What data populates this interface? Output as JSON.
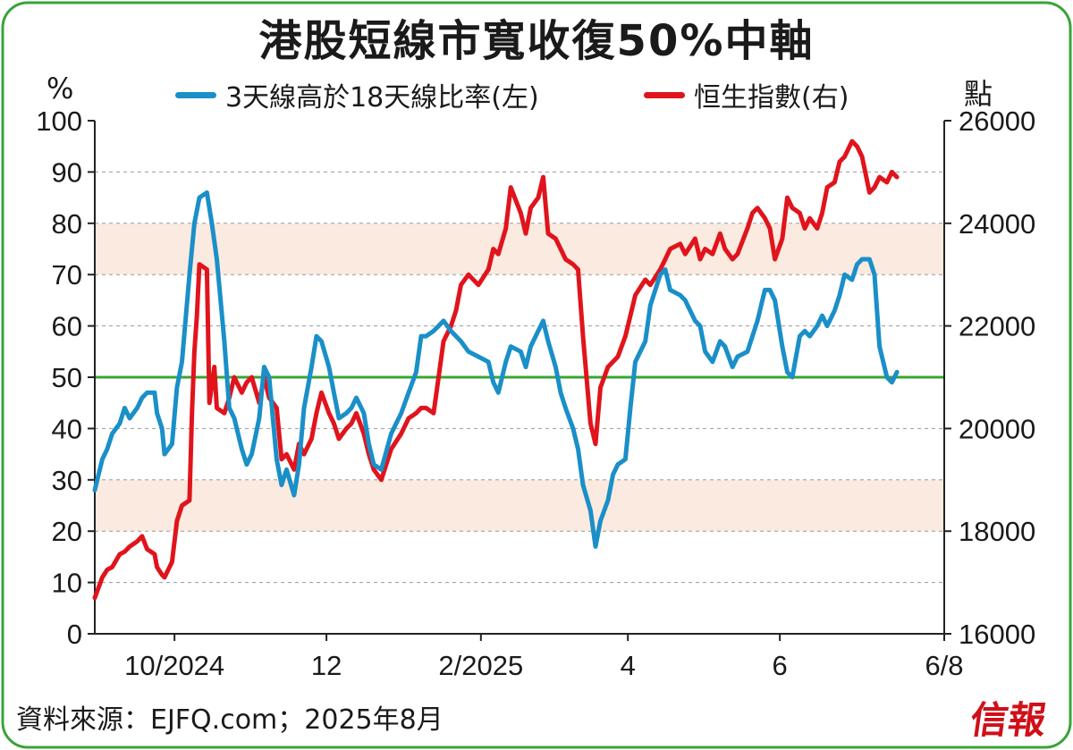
{
  "title": "港股短線市寬收復50%中軸",
  "units": {
    "left": "%",
    "right": "點"
  },
  "source": "資料來源：EJFQ.com；2025年8月",
  "brand": "信報",
  "colors": {
    "ratio": "#1a8fc8",
    "hsi": "#e0141c",
    "midline": "#3aa52f",
    "band": "#fbeadf",
    "frame": "#3aa33a"
  },
  "chart_data": {
    "type": "line",
    "x_ticks": [
      "10/2024",
      "12",
      "2/2025",
      "4",
      "6",
      "6/8"
    ],
    "y_left": {
      "range": [
        0,
        100
      ],
      "ticks": [
        "0",
        "10",
        "20",
        "30",
        "40",
        "50",
        "60",
        "70",
        "80",
        "90",
        "100"
      ]
    },
    "y_right": {
      "range": [
        16000,
        26000
      ],
      "ticks": [
        "16000",
        "18000",
        "20000",
        "22000",
        "24000",
        "26000"
      ]
    },
    "grid": "horizontal-dashed",
    "bands_left": [
      [
        20,
        30
      ],
      [
        70,
        80
      ]
    ],
    "reference_line_left": 50,
    "legend_position": "top",
    "series": [
      {
        "name": "3天線高於18天線比率(左)",
        "axis": "left",
        "points": [
          [
            "2024-08-30",
            28
          ],
          [
            "2024-09-02",
            34
          ],
          [
            "2024-09-04",
            36
          ],
          [
            "2024-09-06",
            39
          ],
          [
            "2024-09-09",
            41
          ],
          [
            "2024-09-11",
            44
          ],
          [
            "2024-09-13",
            42
          ],
          [
            "2024-09-16",
            44
          ],
          [
            "2024-09-18",
            46
          ],
          [
            "2024-09-20",
            47
          ],
          [
            "2024-09-23",
            47
          ],
          [
            "2024-09-24",
            43
          ],
          [
            "2024-09-26",
            40
          ],
          [
            "2024-09-27",
            35
          ],
          [
            "2024-09-30",
            37
          ],
          [
            "2024-10-02",
            48
          ],
          [
            "2024-10-04",
            53
          ],
          [
            "2024-10-07",
            70
          ],
          [
            "2024-10-09",
            80
          ],
          [
            "2024-10-11",
            85
          ],
          [
            "2024-10-14",
            86
          ],
          [
            "2024-10-16",
            80
          ],
          [
            "2024-10-18",
            73
          ],
          [
            "2024-10-21",
            57
          ],
          [
            "2024-10-23",
            44
          ],
          [
            "2024-10-25",
            42
          ],
          [
            "2024-10-28",
            36
          ],
          [
            "2024-10-30",
            33
          ],
          [
            "2024-11-01",
            35
          ],
          [
            "2024-11-04",
            42
          ],
          [
            "2024-11-06",
            52
          ],
          [
            "2024-11-08",
            50
          ],
          [
            "2024-11-11",
            34
          ],
          [
            "2024-11-13",
            29
          ],
          [
            "2024-11-15",
            32
          ],
          [
            "2024-11-18",
            27
          ],
          [
            "2024-11-20",
            33
          ],
          [
            "2024-11-22",
            44
          ],
          [
            "2024-11-25",
            52
          ],
          [
            "2024-11-27",
            58
          ],
          [
            "2024-11-29",
            57
          ],
          [
            "2024-12-02",
            52
          ],
          [
            "2024-12-04",
            47
          ],
          [
            "2024-12-06",
            42
          ],
          [
            "2024-12-09",
            43
          ],
          [
            "2024-12-11",
            44
          ],
          [
            "2024-12-13",
            46
          ],
          [
            "2024-12-16",
            43
          ],
          [
            "2024-12-18",
            37
          ],
          [
            "2024-12-20",
            33
          ],
          [
            "2024-12-23",
            32
          ],
          [
            "2024-12-27",
            39
          ],
          [
            "2024-12-31",
            43
          ],
          [
            "2025-01-03",
            47
          ],
          [
            "2025-01-06",
            51
          ],
          [
            "2025-01-08",
            58
          ],
          [
            "2025-01-10",
            58
          ],
          [
            "2025-01-13",
            59
          ],
          [
            "2025-01-15",
            60
          ],
          [
            "2025-01-17",
            61
          ],
          [
            "2025-01-20",
            59
          ],
          [
            "2025-01-22",
            58
          ],
          [
            "2025-01-24",
            57
          ],
          [
            "2025-01-27",
            55
          ],
          [
            "2025-01-31",
            54
          ],
          [
            "2025-02-04",
            53
          ],
          [
            "2025-02-06",
            49
          ],
          [
            "2025-02-08",
            47
          ],
          [
            "2025-02-11",
            53
          ],
          [
            "2025-02-13",
            56
          ],
          [
            "2025-02-17",
            55
          ],
          [
            "2025-02-19",
            52
          ],
          [
            "2025-02-21",
            56
          ],
          [
            "2025-02-24",
            59
          ],
          [
            "2025-02-26",
            61
          ],
          [
            "2025-02-28",
            57
          ],
          [
            "2025-03-03",
            52
          ],
          [
            "2025-03-05",
            47
          ],
          [
            "2025-03-07",
            44
          ],
          [
            "2025-03-10",
            40
          ],
          [
            "2025-03-12",
            36
          ],
          [
            "2025-03-14",
            29
          ],
          [
            "2025-03-17",
            24
          ],
          [
            "2025-03-19",
            17
          ],
          [
            "2025-03-21",
            22
          ],
          [
            "2025-03-24",
            26
          ],
          [
            "2025-03-26",
            31
          ],
          [
            "2025-03-28",
            33
          ],
          [
            "2025-03-31",
            34
          ],
          [
            "2025-04-02",
            44
          ],
          [
            "2025-04-04",
            53
          ],
          [
            "2025-04-08",
            57
          ],
          [
            "2025-04-10",
            64
          ],
          [
            "2025-04-14",
            70
          ],
          [
            "2025-04-16",
            71
          ],
          [
            "2025-04-18",
            67
          ],
          [
            "2025-04-22",
            66
          ],
          [
            "2025-04-24",
            65
          ],
          [
            "2025-04-28",
            61
          ],
          [
            "2025-04-30",
            60
          ],
          [
            "2025-05-02",
            55
          ],
          [
            "2025-05-05",
            53
          ],
          [
            "2025-05-08",
            57
          ],
          [
            "2025-05-10",
            56
          ],
          [
            "2025-05-13",
            52
          ],
          [
            "2025-05-15",
            54
          ],
          [
            "2025-05-19",
            55
          ],
          [
            "2025-05-21",
            58
          ],
          [
            "2025-05-23",
            61
          ],
          [
            "2025-05-26",
            67
          ],
          [
            "2025-05-28",
            67
          ],
          [
            "2025-05-30",
            65
          ],
          [
            "2025-06-02",
            56
          ],
          [
            "2025-06-04",
            51
          ],
          [
            "2025-06-06",
            50
          ],
          [
            "2025-06-09",
            58
          ],
          [
            "2025-06-11",
            59
          ],
          [
            "2025-06-13",
            58
          ],
          [
            "2025-06-16",
            60
          ],
          [
            "2025-06-18",
            62
          ],
          [
            "2025-06-20",
            60
          ],
          [
            "2025-06-23",
            63
          ],
          [
            "2025-06-25",
            66
          ],
          [
            "2025-06-27",
            70
          ],
          [
            "2025-06-30",
            69
          ],
          [
            "2025-07-02",
            72
          ],
          [
            "2025-07-04",
            73
          ],
          [
            "2025-07-07",
            73
          ],
          [
            "2025-07-09",
            70
          ],
          [
            "2025-07-11",
            56
          ],
          [
            "2025-07-14",
            50
          ],
          [
            "2025-07-16",
            49
          ],
          [
            "2025-07-18",
            51
          ]
        ]
      },
      {
        "name": "恒生指數(右)",
        "axis": "right",
        "points": [
          [
            "2024-08-30",
            16700
          ],
          [
            "2024-09-02",
            17100
          ],
          [
            "2024-09-04",
            17250
          ],
          [
            "2024-09-06",
            17300
          ],
          [
            "2024-09-09",
            17550
          ],
          [
            "2024-09-11",
            17600
          ],
          [
            "2024-09-13",
            17700
          ],
          [
            "2024-09-16",
            17800
          ],
          [
            "2024-09-18",
            17900
          ],
          [
            "2024-09-20",
            17650
          ],
          [
            "2024-09-23",
            17550
          ],
          [
            "2024-09-24",
            17300
          ],
          [
            "2024-09-26",
            17150
          ],
          [
            "2024-09-27",
            17100
          ],
          [
            "2024-09-30",
            17400
          ],
          [
            "2024-10-02",
            18200
          ],
          [
            "2024-10-04",
            18500
          ],
          [
            "2024-10-07",
            18600
          ],
          [
            "2024-10-08",
            20300
          ],
          [
            "2024-10-09",
            21500
          ],
          [
            "2024-10-10",
            22200
          ],
          [
            "2024-10-11",
            23200
          ],
          [
            "2024-10-14",
            23100
          ],
          [
            "2024-10-15",
            20500
          ],
          [
            "2024-10-17",
            21200
          ],
          [
            "2024-10-18",
            20400
          ],
          [
            "2024-10-21",
            20300
          ],
          [
            "2024-10-23",
            20600
          ],
          [
            "2024-10-25",
            21000
          ],
          [
            "2024-10-28",
            20700
          ],
          [
            "2024-10-30",
            20900
          ],
          [
            "2024-11-01",
            21000
          ],
          [
            "2024-11-04",
            20500
          ],
          [
            "2024-11-06",
            21000
          ],
          [
            "2024-11-08",
            20600
          ],
          [
            "2024-11-11",
            20400
          ],
          [
            "2024-11-13",
            19400
          ],
          [
            "2024-11-15",
            19500
          ],
          [
            "2024-11-18",
            19200
          ],
          [
            "2024-11-20",
            19700
          ],
          [
            "2024-11-22",
            19500
          ],
          [
            "2024-11-25",
            19800
          ],
          [
            "2024-11-27",
            20300
          ],
          [
            "2024-11-29",
            20700
          ],
          [
            "2024-12-02",
            20300
          ],
          [
            "2024-12-04",
            20100
          ],
          [
            "2024-12-06",
            19800
          ],
          [
            "2024-12-09",
            20000
          ],
          [
            "2024-12-11",
            20100
          ],
          [
            "2024-12-13",
            20300
          ],
          [
            "2024-12-16",
            19900
          ],
          [
            "2024-12-18",
            19500
          ],
          [
            "2024-12-20",
            19200
          ],
          [
            "2024-12-23",
            19000
          ],
          [
            "2024-12-27",
            19600
          ],
          [
            "2024-12-31",
            19900
          ],
          [
            "2025-01-03",
            20200
          ],
          [
            "2025-01-06",
            20300
          ],
          [
            "2025-01-08",
            20400
          ],
          [
            "2025-01-10",
            20400
          ],
          [
            "2025-01-13",
            20300
          ],
          [
            "2025-01-15",
            21000
          ],
          [
            "2025-01-17",
            21700
          ],
          [
            "2025-01-20",
            22000
          ],
          [
            "2025-01-22",
            22300
          ],
          [
            "2025-01-24",
            22800
          ],
          [
            "2025-01-27",
            23000
          ],
          [
            "2025-01-31",
            22800
          ],
          [
            "2025-02-04",
            23100
          ],
          [
            "2025-02-06",
            23500
          ],
          [
            "2025-02-08",
            23400
          ],
          [
            "2025-02-11",
            23900
          ],
          [
            "2025-02-13",
            24700
          ],
          [
            "2025-02-17",
            24200
          ],
          [
            "2025-02-19",
            23800
          ],
          [
            "2025-02-21",
            24300
          ],
          [
            "2025-02-24",
            24500
          ],
          [
            "2025-02-26",
            24900
          ],
          [
            "2025-02-28",
            23800
          ],
          [
            "2025-03-03",
            23700
          ],
          [
            "2025-03-05",
            23500
          ],
          [
            "2025-03-07",
            23300
          ],
          [
            "2025-03-10",
            23200
          ],
          [
            "2025-03-12",
            23100
          ],
          [
            "2025-03-14",
            21800
          ],
          [
            "2025-03-17",
            20100
          ],
          [
            "2025-03-19",
            19700
          ],
          [
            "2025-03-21",
            20800
          ],
          [
            "2025-03-24",
            21200
          ],
          [
            "2025-03-26",
            21300
          ],
          [
            "2025-03-28",
            21400
          ],
          [
            "2025-03-31",
            21800
          ],
          [
            "2025-04-02",
            22200
          ],
          [
            "2025-04-04",
            22600
          ],
          [
            "2025-04-08",
            22900
          ],
          [
            "2025-04-10",
            22800
          ],
          [
            "2025-04-14",
            23100
          ],
          [
            "2025-04-16",
            23300
          ],
          [
            "2025-04-18",
            23500
          ],
          [
            "2025-04-22",
            23600
          ],
          [
            "2025-04-24",
            23400
          ],
          [
            "2025-04-28",
            23700
          ],
          [
            "2025-04-30",
            23300
          ],
          [
            "2025-05-02",
            23500
          ],
          [
            "2025-05-05",
            23400
          ],
          [
            "2025-05-08",
            23800
          ],
          [
            "2025-05-10",
            23500
          ],
          [
            "2025-05-13",
            23300
          ],
          [
            "2025-05-15",
            23400
          ],
          [
            "2025-05-19",
            23900
          ],
          [
            "2025-05-21",
            24200
          ],
          [
            "2025-05-23",
            24300
          ],
          [
            "2025-05-26",
            24100
          ],
          [
            "2025-05-28",
            23900
          ],
          [
            "2025-05-30",
            23300
          ],
          [
            "2025-06-02",
            23700
          ],
          [
            "2025-06-04",
            24500
          ],
          [
            "2025-06-06",
            24300
          ],
          [
            "2025-06-09",
            24200
          ],
          [
            "2025-06-11",
            23900
          ],
          [
            "2025-06-13",
            24100
          ],
          [
            "2025-06-16",
            23900
          ],
          [
            "2025-06-18",
            24200
          ],
          [
            "2025-06-20",
            24700
          ],
          [
            "2025-06-23",
            24800
          ],
          [
            "2025-06-25",
            25200
          ],
          [
            "2025-06-27",
            25300
          ],
          [
            "2025-06-30",
            25600
          ],
          [
            "2025-07-02",
            25500
          ],
          [
            "2025-07-04",
            25300
          ],
          [
            "2025-07-07",
            24600
          ],
          [
            "2025-07-09",
            24700
          ],
          [
            "2025-07-11",
            24900
          ],
          [
            "2025-07-14",
            24800
          ],
          [
            "2025-07-16",
            25000
          ],
          [
            "2025-07-18",
            24900
          ]
        ]
      }
    ]
  }
}
